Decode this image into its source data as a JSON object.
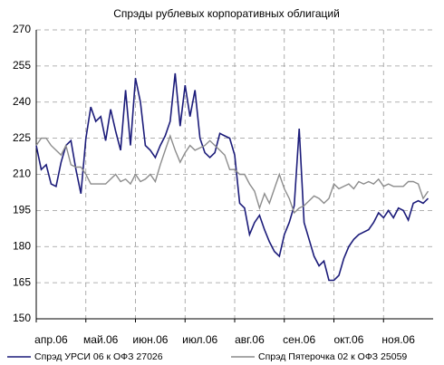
{
  "chart_data": {
    "type": "line",
    "title": "Спрэды рублевых корпоративных облигаций",
    "categories": [
      "апр.06",
      null,
      null,
      null,
      null,
      null,
      null,
      null,
      null,
      null,
      "май.06",
      null,
      null,
      null,
      null,
      null,
      null,
      null,
      null,
      null,
      "июн.06",
      null,
      null,
      null,
      null,
      null,
      null,
      null,
      null,
      null,
      "июл.06",
      null,
      null,
      null,
      null,
      null,
      null,
      null,
      null,
      null,
      "авг.06",
      null,
      null,
      null,
      null,
      null,
      null,
      null,
      null,
      null,
      "сен.06",
      null,
      null,
      null,
      null,
      null,
      null,
      null,
      null,
      null,
      "окт.06",
      null,
      null,
      null,
      null,
      null,
      null,
      null,
      null,
      null,
      "ноя.06",
      null,
      null,
      null,
      null,
      null,
      null,
      null,
      null,
      null
    ],
    "series": [
      {
        "name": "Спрэд УРСИ 06 к ОФЗ 27026",
        "color": "#1c1c7a",
        "values": [
          222,
          212,
          214,
          206,
          205,
          215,
          222,
          224,
          212,
          202,
          225,
          238,
          232,
          234,
          224,
          237,
          228,
          220,
          245,
          222,
          250,
          240,
          222,
          220,
          217,
          222,
          226,
          232,
          252,
          230,
          247,
          234,
          245,
          225,
          219,
          217,
          219,
          227,
          226,
          225,
          218,
          198,
          196,
          185,
          190,
          193,
          187,
          182,
          178,
          176,
          185,
          190,
          197,
          229,
          190,
          183,
          176,
          172,
          174,
          166,
          166,
          168,
          175,
          180,
          183,
          185,
          186,
          187,
          190,
          194,
          192,
          195,
          192,
          196,
          195,
          191,
          198,
          199,
          198,
          200
        ]
      },
      {
        "name": "Спрэд Пятерочка 02 к ОФЗ 25059",
        "color": "#8c8c8c",
        "values": [
          222,
          225,
          225,
          222,
          220,
          218,
          222,
          214,
          213,
          213,
          210,
          206,
          206,
          206,
          206,
          208,
          210,
          207,
          208,
          206,
          210,
          207,
          208,
          210,
          207,
          214,
          220,
          226,
          220,
          215,
          219,
          222,
          220,
          221,
          222,
          224,
          222,
          220,
          218,
          212,
          212,
          210,
          210,
          206,
          203,
          196,
          202,
          198,
          204,
          210,
          204,
          200,
          194,
          196,
          197,
          199,
          201,
          200,
          198,
          200,
          206,
          204,
          205,
          206,
          204,
          207,
          206,
          207,
          206,
          208,
          205,
          206,
          205,
          205,
          205,
          207,
          207,
          206,
          200,
          203
        ]
      }
    ],
    "ylim": [
      150,
      270
    ],
    "yticks": [
      150,
      165,
      180,
      195,
      210,
      225,
      240,
      255,
      270
    ],
    "grid": true
  }
}
